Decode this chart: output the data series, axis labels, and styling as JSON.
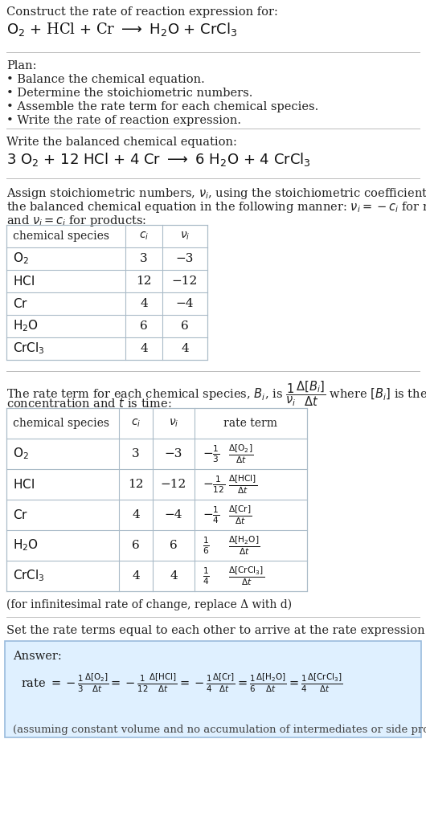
{
  "title_line1": "Construct the rate of reaction expression for:",
  "plan_header": "Plan:",
  "plan_items": [
    "• Balance the chemical equation.",
    "• Determine the stoichiometric numbers.",
    "• Assemble the rate term for each chemical species.",
    "• Write the rate of reaction expression."
  ],
  "balanced_header": "Write the balanced chemical equation:",
  "table1_headers": [
    "chemical species",
    "c_i",
    "ν_i"
  ],
  "table1_data": [
    [
      "O_2",
      "3",
      "−3"
    ],
    [
      "HCl",
      "12",
      "−12"
    ],
    [
      "Cr",
      "4",
      "−4"
    ],
    [
      "H_2O",
      "6",
      "6"
    ],
    [
      "CrCl_3",
      "4",
      "4"
    ]
  ],
  "table2_headers": [
    "chemical species",
    "c_i",
    "ν_i",
    "rate term"
  ],
  "table2_data": [
    [
      "O_2",
      "3",
      "−3"
    ],
    [
      "HCl",
      "12",
      "−12"
    ],
    [
      "Cr",
      "4",
      "−4"
    ],
    [
      "H_2O",
      "6",
      "6"
    ],
    [
      "CrCl_3",
      "4",
      "4"
    ]
  ],
  "infinitesimal_note": "(for infinitesimal rate of change, replace Δ with d)",
  "set_equal_text": "Set the rate terms equal to each other to arrive at the rate expression:",
  "answer_box_color": "#dff0ff",
  "answer_border_color": "#99bbdd",
  "assuming_note": "(assuming constant volume and no accumulation of intermediates or side products)",
  "bg_color": "#ffffff",
  "table_line_color": "#aabbc8",
  "divider_color": "#bbbbbb"
}
